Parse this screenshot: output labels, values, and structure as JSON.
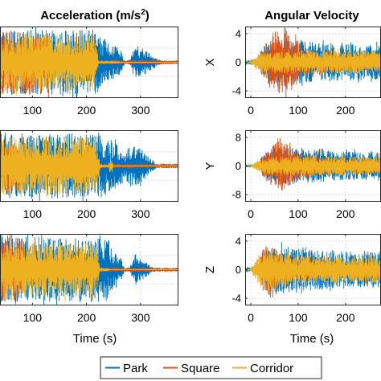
{
  "chart_data": [
    {
      "type": "line",
      "title": "Acceleration (m/s²)",
      "title_main": "Acceleration (m/s",
      "title_sup": "2",
      "title_close": ")",
      "row_label": "",
      "xlabel": "",
      "xticks": [
        "100",
        "200",
        "300"
      ],
      "xlim": [
        40,
        370
      ],
      "yticks": [],
      "grid": true,
      "series": [
        {
          "name": "Park",
          "segments": [
            [
              40,
              375,
              6,
              6
            ]
          ],
          "color": "#0072BD",
          "envelope": [
            [
              40,
              9
            ],
            [
              120,
              9
            ],
            [
              220,
              9
            ],
            [
              225,
              7
            ],
            [
              250,
              5
            ],
            [
              265,
              3
            ],
            [
              270,
              0.4
            ],
            [
              280,
              0.6
            ],
            [
              290,
              5
            ],
            [
              300,
              4
            ],
            [
              315,
              3
            ],
            [
              330,
              1
            ],
            [
              340,
              0.3
            ],
            [
              375,
              0.3
            ]
          ]
        },
        {
          "name": "Square",
          "color": "#D95319",
          "envelope": [
            [
              40,
              9
            ],
            [
              130,
              9
            ],
            [
              135,
              0.5
            ],
            [
              380,
              0.5
            ]
          ]
        },
        {
          "name": "Corridor",
          "color": "#EDB120",
          "envelope": [
            [
              40,
              8
            ],
            [
              215,
              8
            ],
            [
              220,
              4
            ],
            [
              222,
              0.3
            ],
            [
              260,
              0.3
            ],
            [
              262,
              0
            ],
            [
              380,
              0
            ]
          ]
        }
      ]
    },
    {
      "type": "line",
      "title": "",
      "row_label": "",
      "xlabel": "",
      "xticks": [
        "100",
        "200",
        "300"
      ],
      "xlim": [
        40,
        370
      ],
      "yticks": [],
      "grid": true,
      "series": [
        {
          "name": "Park",
          "color": "#0072BD",
          "envelope": [
            [
              40,
              9
            ],
            [
              120,
              9
            ],
            [
              220,
              9
            ],
            [
              240,
              8
            ],
            [
              260,
              6
            ],
            [
              270,
              3
            ],
            [
              280,
              6
            ],
            [
              300,
              5
            ],
            [
              310,
              3
            ],
            [
              320,
              2
            ],
            [
              330,
              0.5
            ],
            [
              375,
              0.6
            ]
          ]
        },
        {
          "name": "Square",
          "color": "#D95319",
          "envelope": [
            [
              40,
              9
            ],
            [
              70,
              9
            ],
            [
              75,
              0.5
            ],
            [
              380,
              0.5
            ]
          ]
        },
        {
          "name": "Corridor",
          "color": "#EDB120",
          "envelope": [
            [
              40,
              8
            ],
            [
              215,
              8
            ],
            [
              220,
              5
            ],
            [
              225,
              0.5
            ],
            [
              240,
              0.3
            ],
            [
              245,
              3
            ],
            [
              250,
              0
            ],
            [
              380,
              0
            ]
          ]
        }
      ]
    },
    {
      "type": "line",
      "title": "",
      "row_label": "",
      "xlabel": "Time (s)",
      "xticks": [
        "100",
        "200",
        "300"
      ],
      "xlim": [
        40,
        370
      ],
      "yticks": [],
      "grid": true,
      "series": [
        {
          "name": "Park",
          "color": "#0072BD",
          "envelope": [
            [
              40,
              9
            ],
            [
              120,
              9
            ],
            [
              220,
              9
            ],
            [
              240,
              8
            ],
            [
              250,
              5
            ],
            [
              265,
              3
            ],
            [
              270,
              0.5
            ],
            [
              280,
              0.5
            ],
            [
              290,
              5
            ],
            [
              300,
              3
            ],
            [
              310,
              2
            ],
            [
              320,
              0.8
            ],
            [
              330,
              0.4
            ],
            [
              375,
              0.4
            ]
          ]
        },
        {
          "name": "Square",
          "color": "#D95319",
          "envelope": [
            [
              40,
              9
            ],
            [
              80,
              9
            ],
            [
              85,
              0.5
            ],
            [
              380,
              0.5
            ]
          ]
        },
        {
          "name": "Corridor",
          "color": "#EDB120",
          "envelope": [
            [
              40,
              8
            ],
            [
              215,
              8
            ],
            [
              220,
              5
            ],
            [
              225,
              0.5
            ],
            [
              240,
              0.3
            ],
            [
              245,
              0
            ],
            [
              380,
              0
            ]
          ]
        }
      ]
    },
    {
      "type": "line",
      "title": "Angular Velocity",
      "row_label": "X",
      "xlabel": "",
      "xticks": [
        "0",
        "100",
        "200"
      ],
      "xlim": [
        -12,
        275
      ],
      "ylim": [
        -5,
        5
      ],
      "yticks": [
        "4",
        "0",
        "-4"
      ],
      "ytick_values": [
        4,
        0,
        -4
      ],
      "grid": true,
      "series": [
        {
          "name": "Park",
          "color": "#0072BD",
          "envelope": [
            [
              0,
              0.3
            ],
            [
              15,
              0.5
            ],
            [
              25,
              2
            ],
            [
              50,
              3
            ],
            [
              100,
              3
            ],
            [
              150,
              2.7
            ],
            [
              200,
              2.5
            ],
            [
              250,
              2.5
            ],
            [
              275,
              2.5
            ]
          ]
        },
        {
          "name": "Square",
          "color": "#D95319",
          "envelope": [
            [
              0,
              0
            ],
            [
              15,
              0
            ],
            [
              20,
              1.5
            ],
            [
              30,
              2.5
            ],
            [
              50,
              4.6
            ],
            [
              70,
              4.6
            ],
            [
              95,
              3.5
            ],
            [
              110,
              2
            ],
            [
              150,
              1.5
            ],
            [
              200,
              1.2
            ],
            [
              275,
              1
            ]
          ]
        },
        {
          "name": "Corridor",
          "color": "#EDB120",
          "envelope": [
            [
              0,
              0.1
            ],
            [
              15,
              1.2
            ],
            [
              30,
              1.5
            ],
            [
              100,
              1.6
            ],
            [
              200,
              1.7
            ],
            [
              250,
              1.5
            ],
            [
              275,
              1.5
            ]
          ]
        }
      ]
    },
    {
      "type": "line",
      "title": "",
      "row_label": "Y",
      "xlabel": "",
      "xticks": [
        "0",
        "100",
        "200"
      ],
      "xlim": [
        -12,
        275
      ],
      "ylim": [
        -10,
        10
      ],
      "yticks": [
        "8",
        "0",
        "-8"
      ],
      "ytick_values": [
        8,
        0,
        -8
      ],
      "grid": true,
      "series": [
        {
          "name": "Park",
          "color": "#0072BD",
          "envelope": [
            [
              0,
              0.3
            ],
            [
              15,
              0.5
            ],
            [
              25,
              3
            ],
            [
              50,
              5
            ],
            [
              100,
              5
            ],
            [
              150,
              4.5
            ],
            [
              200,
              4
            ],
            [
              250,
              4
            ],
            [
              275,
              4
            ]
          ]
        },
        {
          "name": "Square",
          "color": "#D95319",
          "envelope": [
            [
              0,
              0
            ],
            [
              15,
              0
            ],
            [
              25,
              3
            ],
            [
              40,
              5
            ],
            [
              60,
              7
            ],
            [
              80,
              6
            ],
            [
              100,
              4
            ],
            [
              150,
              2.5
            ],
            [
              200,
              2
            ],
            [
              275,
              2
            ]
          ]
        },
        {
          "name": "Corridor",
          "color": "#EDB120",
          "envelope": [
            [
              0,
              0.1
            ],
            [
              15,
              1.5
            ],
            [
              40,
              2.5
            ],
            [
              100,
              2.8
            ],
            [
              200,
              2.6
            ],
            [
              275,
              2.5
            ]
          ]
        }
      ]
    },
    {
      "type": "line",
      "title": "",
      "row_label": "Z",
      "xlabel": "Time (s)",
      "xticks": [
        "0",
        "100",
        "200"
      ],
      "xlim": [
        -12,
        275
      ],
      "ylim": [
        -5,
        5
      ],
      "yticks": [
        "4",
        "0",
        "-4"
      ],
      "ytick_values": [
        4,
        0,
        -4
      ],
      "grid": true,
      "series": [
        {
          "name": "Park",
          "color": "#0072BD",
          "envelope": [
            [
              0,
              0.3
            ],
            [
              15,
              0.5
            ],
            [
              25,
              2.5
            ],
            [
              50,
              3.5
            ],
            [
              100,
              3
            ],
            [
              150,
              2.7
            ],
            [
              200,
              2.5
            ],
            [
              250,
              2.5
            ],
            [
              275,
              2.5
            ]
          ]
        },
        {
          "name": "Square",
          "color": "#D95319",
          "envelope": [
            [
              0,
              0
            ],
            [
              15,
              0
            ],
            [
              25,
              3
            ],
            [
              40,
              4
            ],
            [
              60,
              2.5
            ],
            [
              100,
              1.5
            ],
            [
              150,
              1.2
            ],
            [
              200,
              1
            ],
            [
              275,
              1
            ]
          ]
        },
        {
          "name": "Corridor",
          "color": "#EDB120",
          "envelope": [
            [
              0,
              0.1
            ],
            [
              15,
              2
            ],
            [
              30,
              3
            ],
            [
              60,
              2.5
            ],
            [
              100,
              2
            ],
            [
              200,
              1.8
            ],
            [
              275,
              1.8
            ]
          ]
        }
      ]
    }
  ],
  "legend": {
    "position": "bottom",
    "items": [
      {
        "label": "Park",
        "color": "#0072BD"
      },
      {
        "label": "Square",
        "color": "#D95319"
      },
      {
        "label": "Corridor",
        "color": "#EDB120"
      }
    ]
  }
}
